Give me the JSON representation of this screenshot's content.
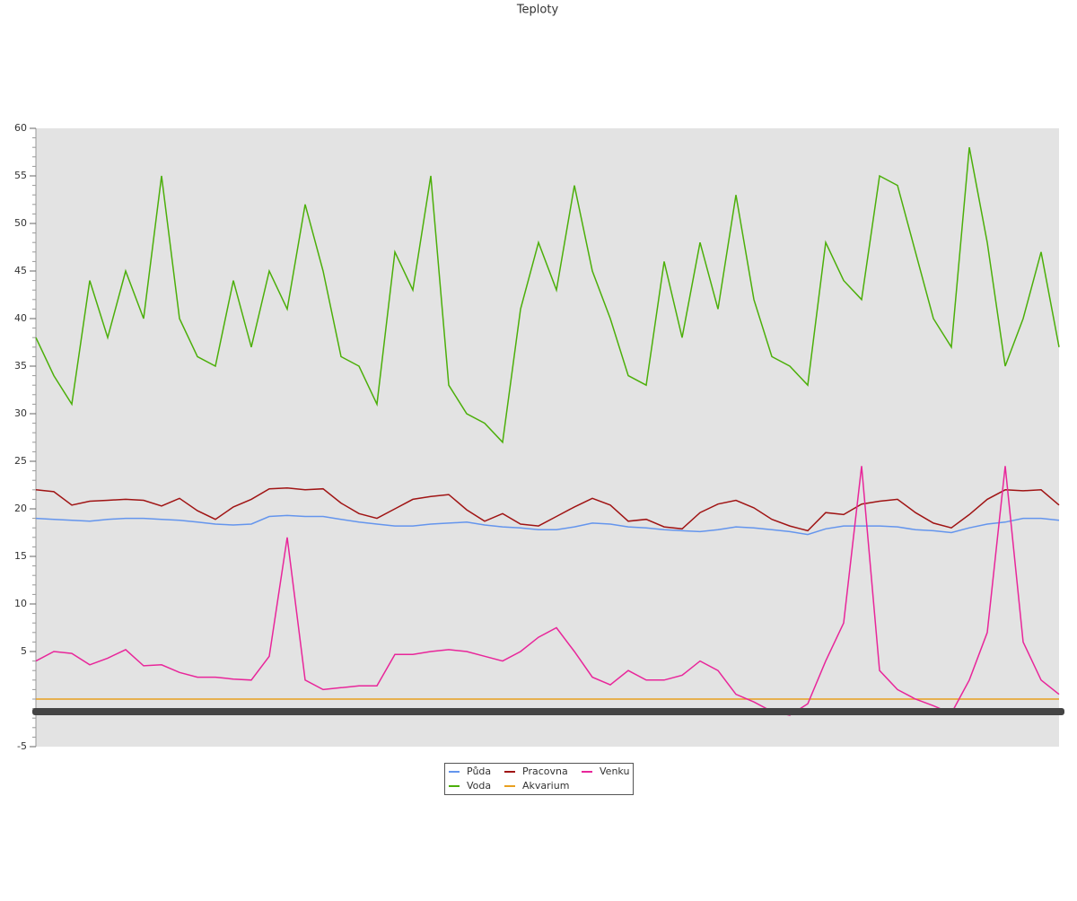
{
  "chart_data": {
    "type": "line",
    "title": "Teploty",
    "categories": [
      null,
      null,
      null,
      null,
      null,
      null,
      null,
      null,
      null,
      null,
      null,
      null,
      null,
      null,
      null,
      null,
      null,
      null,
      null,
      null,
      null,
      null,
      null,
      null,
      null,
      null,
      null,
      null,
      null,
      null,
      null,
      null,
      null,
      null,
      null,
      null,
      null,
      null,
      null,
      null,
      null,
      null,
      null,
      null,
      null,
      null,
      null,
      null,
      null,
      null,
      null,
      null,
      null,
      null,
      null,
      null,
      null,
      null
    ],
    "ylim": [
      -5,
      60
    ],
    "yticks": [
      -5,
      5,
      10,
      15,
      20,
      25,
      30,
      35,
      40,
      45,
      50,
      55,
      60
    ],
    "series": [
      {
        "name": "Půda",
        "color": "#6495ed",
        "values": [
          19,
          18.9,
          18.8,
          18.7,
          18.9,
          19,
          19,
          18.9,
          18.8,
          18.6,
          18.4,
          18.3,
          18.4,
          19.2,
          19.3,
          19.2,
          19.2,
          18.9,
          18.6,
          18.4,
          18.2,
          18.2,
          18.4,
          18.5,
          18.6,
          18.3,
          18.1,
          18,
          17.8,
          17.8,
          18.1,
          18.5,
          18.4,
          18.1,
          18,
          17.8,
          17.7,
          17.6,
          17.8,
          18.1,
          18,
          17.8,
          17.6,
          17.3,
          17.9,
          18.2,
          18.2,
          18.2,
          18.1,
          17.8,
          17.7,
          17.5,
          18,
          18.4,
          18.6,
          19,
          19,
          18.8
        ]
      },
      {
        "name": "Voda",
        "color": "#4caf0a",
        "values": [
          38,
          34,
          31,
          44,
          38,
          45,
          40,
          55,
          40,
          36,
          35,
          44,
          37,
          45,
          41,
          52,
          45,
          36,
          35,
          31,
          47,
          43,
          55,
          33,
          30,
          29,
          27,
          41,
          48,
          43,
          54,
          45,
          40,
          34,
          33,
          46,
          38,
          48,
          41,
          53,
          42,
          36,
          35,
          33,
          48,
          44,
          42,
          55,
          54,
          47,
          40,
          37,
          58,
          48,
          35,
          40,
          47,
          37
        ]
      },
      {
        "name": "Pracovna",
        "color": "#a01414",
        "values": [
          22,
          21.8,
          20.4,
          20.8,
          20.9,
          21,
          20.9,
          20.3,
          21.1,
          19.8,
          18.9,
          20.2,
          21,
          22.1,
          22.2,
          22,
          22.1,
          20.6,
          19.5,
          19,
          20,
          21,
          21.3,
          21.5,
          19.9,
          18.7,
          19.5,
          18.4,
          18.2,
          19.2,
          20.2,
          21.1,
          20.4,
          18.7,
          18.9,
          18.1,
          17.9,
          19.6,
          20.5,
          20.9,
          20.1,
          18.9,
          18.2,
          17.7,
          19.6,
          19.4,
          20.5,
          20.8,
          21,
          19.6,
          18.5,
          18,
          19.4,
          21,
          22,
          21.9,
          22,
          20.4
        ]
      },
      {
        "name": "Akvarium",
        "color": "#e8a020",
        "values": [
          0,
          0,
          0,
          0,
          0,
          0,
          0,
          0,
          0,
          0,
          0,
          0,
          0,
          0,
          0,
          0,
          0,
          0,
          0,
          0,
          0,
          0,
          0,
          0,
          0,
          0,
          0,
          0,
          0,
          0,
          0,
          0,
          0,
          0,
          0,
          0,
          0,
          0,
          0,
          0,
          0,
          0,
          0,
          0,
          0,
          0,
          0,
          0,
          0,
          0,
          0,
          0,
          0,
          0,
          0,
          0,
          0,
          0
        ]
      },
      {
        "name": "Venku",
        "color": "#e8269a",
        "values": [
          4,
          5,
          4.8,
          3.6,
          4.3,
          5.2,
          3.5,
          3.6,
          2.8,
          2.3,
          2.3,
          2.1,
          2,
          4.5,
          17,
          2,
          1,
          1.2,
          1.4,
          1.4,
          4.7,
          4.7,
          5,
          5.2,
          5,
          4.5,
          4,
          5,
          6.5,
          7.5,
          5,
          2.3,
          1.5,
          3,
          2,
          2,
          2.5,
          4,
          3,
          0.5,
          -0.3,
          -1.3,
          -1.7,
          -0.5,
          4,
          8,
          24.5,
          3,
          1,
          0,
          -0.7,
          -1.5,
          2,
          7,
          24.5,
          6,
          2,
          0.5
        ]
      }
    ]
  }
}
